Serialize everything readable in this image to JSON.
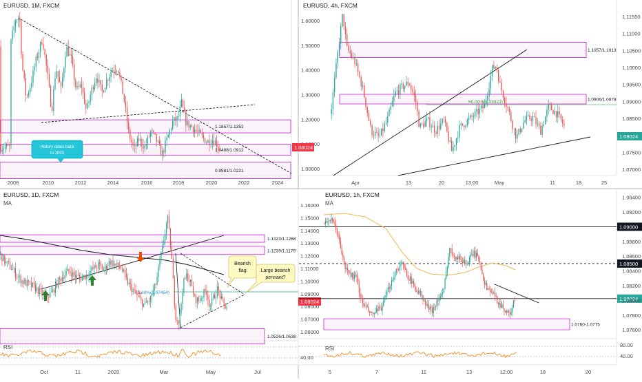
{
  "colors": {
    "up": "#26a69a",
    "down": "#ef5350",
    "zone": "#c71ed3",
    "ma": "#f7b54c",
    "rsi": "#f57c00",
    "price_tag": "#f23645",
    "fib": "#089981",
    "divider": "#d1d4dc"
  },
  "chart_data": [
    {
      "id": "monthly",
      "type": "candlestick",
      "title": "EURUSD, 1M, FXCM",
      "last_price": "1.08024",
      "x_ticks": [
        "2008",
        "2010",
        "2012",
        "2014",
        "2016",
        "2018",
        "2020",
        "2022",
        "2024"
      ],
      "y_ticks": [
        "1.60000",
        "1.50000",
        "1.40000",
        "1.30000",
        "1.20000",
        "1.10000",
        "1.00000"
      ],
      "ylim": [
        0.97,
        1.65
      ],
      "zones": [
        {
          "label": "1.1857/1.1352",
          "low": 1.1352,
          "high": 1.1857
        },
        {
          "label": "1.0488/1.0912",
          "low": 1.0488,
          "high": 1.0912
        },
        {
          "label": "0.9581/1.0221",
          "low": 0.9581,
          "high": 1.0221
        }
      ],
      "callout": {
        "text": [
          "History dates back",
          "to 2003"
        ]
      },
      "series": [
        {
          "name": "",
          "points": [
            [
              2008.0,
              1.47
            ],
            [
              2008.3,
              1.57
            ],
            [
              2008.55,
              1.59
            ],
            [
              2008.7,
              1.4
            ],
            [
              2008.95,
              1.27
            ],
            [
              2009.2,
              1.32
            ],
            [
              2009.5,
              1.41
            ],
            [
              2009.9,
              1.5
            ],
            [
              2010.2,
              1.36
            ],
            [
              2010.45,
              1.22
            ],
            [
              2010.7,
              1.39
            ],
            [
              2011.0,
              1.3
            ],
            [
              2011.3,
              1.47
            ],
            [
              2011.6,
              1.42
            ],
            [
              2011.9,
              1.3
            ],
            [
              2012.2,
              1.32
            ],
            [
              2012.5,
              1.22
            ],
            [
              2012.8,
              1.3
            ],
            [
              2013.1,
              1.36
            ],
            [
              2013.4,
              1.29
            ],
            [
              2013.7,
              1.34
            ],
            [
              2014.0,
              1.38
            ],
            [
              2014.35,
              1.39
            ],
            [
              2014.7,
              1.27
            ],
            [
              2015.0,
              1.13
            ],
            [
              2015.3,
              1.07
            ],
            [
              2015.6,
              1.11
            ],
            [
              2015.95,
              1.08
            ],
            [
              2016.3,
              1.14
            ],
            [
              2016.6,
              1.11
            ],
            [
              2016.95,
              1.05
            ],
            [
              2017.3,
              1.12
            ],
            [
              2017.6,
              1.18
            ],
            [
              2017.9,
              1.19
            ],
            [
              2018.1,
              1.25
            ],
            [
              2018.4,
              1.17
            ],
            [
              2018.7,
              1.16
            ],
            [
              2019.0,
              1.14
            ],
            [
              2019.3,
              1.12
            ],
            [
              2019.6,
              1.1
            ],
            [
              2019.9,
              1.11
            ],
            [
              2020.1,
              1.1
            ],
            [
              2020.3,
              1.08
            ]
          ]
        }
      ]
    },
    {
      "id": "h4",
      "type": "candlestick",
      "title": "EURUSD, 4h, FXCM",
      "last_price": "1.08024",
      "x_ticks": [
        "Apr",
        "13",
        "20",
        "13:00",
        "May",
        "11",
        "18",
        "25"
      ],
      "y_ticks": [
        "1.11500",
        "1.11000",
        "1.10500",
        "1.10000",
        "1.09500",
        "1.09000",
        "1.08500",
        "1.08000",
        "1.07500",
        "1.07000"
      ],
      "ylim": [
        1.067,
        1.118
      ],
      "zones": [
        {
          "label": "1.1057/1.1013",
          "low": 1.1013,
          "high": 1.1057
        },
        {
          "label": "1.0906/1.0878",
          "low": 1.0878,
          "high": 1.0906
        }
      ],
      "fib": {
        "label": "50.00%(1.08923)",
        "level": 1.08923
      },
      "series": [
        {
          "name": "",
          "points": [
            [
              0.0,
              1.085
            ],
            [
              1.0,
              1.105
            ],
            [
              1.5,
              1.114
            ],
            [
              2.0,
              1.104
            ],
            [
              3.0,
              1.1
            ],
            [
              4.0,
              1.092
            ],
            [
              5.0,
              1.08
            ],
            [
              6.0,
              1.078
            ],
            [
              7.0,
              1.083
            ],
            [
              8.0,
              1.091
            ],
            [
              9.0,
              1.093
            ],
            [
              9.7,
              1.094
            ],
            [
              10.5,
              1.089
            ],
            [
              11.0,
              1.081
            ],
            [
              12.0,
              1.083
            ],
            [
              13.0,
              1.08
            ],
            [
              14.0,
              1.083
            ],
            [
              15.0,
              1.074
            ],
            [
              16.0,
              1.081
            ],
            [
              17.0,
              1.083
            ],
            [
              18.0,
              1.085
            ],
            [
              19.0,
              1.087
            ],
            [
              19.5,
              1.092
            ],
            [
              20.0,
              1.098
            ],
            [
              20.5,
              1.099
            ],
            [
              21.0,
              1.093
            ],
            [
              22.0,
              1.086
            ],
            [
              23.0,
              1.078
            ],
            [
              24.0,
              1.083
            ],
            [
              25.0,
              1.084
            ],
            [
              26.0,
              1.08
            ],
            [
              27.0,
              1.087
            ],
            [
              28.0,
              1.085
            ],
            [
              29.0,
              1.081
            ]
          ]
        }
      ]
    },
    {
      "id": "daily",
      "type": "candlestick",
      "title": "EURUSD, 1D, FXCM",
      "indicator_label": "MA",
      "rsi_label": "RSI",
      "last_price": "1.08024",
      "x_ticks": [
        "Oct",
        "11",
        "2020",
        "Mar",
        "May",
        "Jul"
      ],
      "y_ticks": [
        "1.16000",
        "1.15000",
        "1.14000",
        "1.13000",
        "1.12000",
        "1.11000",
        "1.10000",
        "1.09000",
        "1.08000",
        "1.07000",
        "1.06000"
      ],
      "rsi_ticks": [
        "40.00"
      ],
      "ylim": [
        1.055,
        1.165
      ],
      "zones": [
        {
          "label": "1.1323/1.1268",
          "low": 1.1268,
          "high": 1.1323
        },
        {
          "label": "1.1239/1.1179",
          "low": 1.1179,
          "high": 1.1239
        },
        {
          "label": "1.0526/1.0638",
          "low": 1.0526,
          "high": 1.0638
        }
      ],
      "fib": {
        "label": "78.60%(1.07454)",
        "level": 1.07454
      },
      "callouts": [
        {
          "text": [
            "Bearish",
            "flag"
          ]
        },
        {
          "text": [
            "Large bearish",
            "pennant?"
          ]
        }
      ],
      "series": [
        {
          "name": "",
          "points": [
            [
              0,
              1.118
            ],
            [
              3,
              1.112
            ],
            [
              6,
              1.108
            ],
            [
              9,
              1.102
            ],
            [
              12,
              1.098
            ],
            [
              15,
              1.096
            ],
            [
              18,
              1.094
            ],
            [
              21,
              1.09
            ],
            [
              24,
              1.087
            ],
            [
              27,
              1.09
            ],
            [
              30,
              1.098
            ],
            [
              33,
              1.103
            ],
            [
              36,
              1.106
            ],
            [
              39,
              1.102
            ],
            [
              42,
              1.101
            ],
            [
              45,
              1.103
            ],
            [
              48,
              1.107
            ],
            [
              51,
              1.11
            ],
            [
              54,
              1.107
            ],
            [
              57,
              1.113
            ],
            [
              60,
              1.11
            ],
            [
              63,
              1.108
            ],
            [
              66,
              1.098
            ],
            [
              69,
              1.092
            ],
            [
              72,
              1.086
            ],
            [
              75,
              1.081
            ],
            [
              78,
              1.085
            ],
            [
              81,
              1.097
            ],
            [
              84,
              1.12
            ],
            [
              87,
              1.145
            ],
            [
              89,
              1.118
            ],
            [
              91,
              1.074
            ],
            [
              93,
              1.068
            ],
            [
              95,
              1.096
            ],
            [
              97,
              1.103
            ],
            [
              99,
              1.097
            ],
            [
              101,
              1.086
            ],
            [
              103,
              1.084
            ],
            [
              105,
              1.088
            ],
            [
              107,
              1.092
            ],
            [
              109,
              1.08
            ],
            [
              111,
              1.087
            ],
            [
              113,
              1.093
            ],
            [
              115,
              1.084
            ],
            [
              117,
              1.08
            ]
          ]
        }
      ]
    },
    {
      "id": "h1",
      "type": "candlestick",
      "title": "EURUSD, 1h, FXCM",
      "indicator_label": "MA",
      "rsi_label": "RSI",
      "last_price": "1.08024",
      "x_ticks": [
        "5",
        "7",
        "11",
        "13",
        "12:00",
        "18",
        "20"
      ],
      "y_ticks": [
        "1.09400",
        "1.09200",
        "1.09000",
        "1.08800",
        "1.08600",
        "1.08500",
        "1.08400",
        "1.08200",
        "1.08000",
        "1.07800",
        "1.07600"
      ],
      "rsi_ticks": [
        "80.00",
        "40.00"
      ],
      "ylim": [
        1.0748,
        1.095
      ],
      "levels": [
        {
          "label": "1.09000",
          "value": 1.09,
          "style": "solid"
        },
        {
          "label": "1.08500",
          "value": 1.085,
          "style": "dashed"
        },
        {
          "label": "1.08024",
          "value": 1.08024,
          "style": "solid"
        }
      ],
      "zones": [
        {
          "label": "1.0760-1.0775",
          "low": 1.076,
          "high": 1.0775
        }
      ],
      "series": [
        {
          "name": "",
          "points": [
            [
              0,
              1.0905
            ],
            [
              4,
              1.091
            ],
            [
              8,
              1.09
            ],
            [
              11,
              1.0875
            ],
            [
              14,
              1.0845
            ],
            [
              18,
              1.0835
            ],
            [
              22,
              1.083
            ],
            [
              25,
              1.08
            ],
            [
              28,
              1.079
            ],
            [
              32,
              1.078
            ],
            [
              36,
              1.0785
            ],
            [
              40,
              1.0795
            ],
            [
              44,
              1.082
            ],
            [
              48,
              1.084
            ],
            [
              52,
              1.085
            ],
            [
              56,
              1.0835
            ],
            [
              60,
              1.082
            ],
            [
              64,
              1.081
            ],
            [
              68,
              1.0795
            ],
            [
              72,
              1.0785
            ],
            [
              76,
              1.08
            ],
            [
              80,
              1.081
            ],
            [
              84,
              1.087
            ],
            [
              88,
              1.086
            ],
            [
              92,
              1.0855
            ],
            [
              96,
              1.085
            ],
            [
              100,
              1.0865
            ],
            [
              104,
              1.0855
            ],
            [
              108,
              1.082
            ],
            [
              112,
              1.0812
            ],
            [
              116,
              1.08
            ],
            [
              120,
              1.079
            ],
            [
              124,
              1.078
            ],
            [
              128,
              1.0802
            ]
          ]
        }
      ]
    }
  ]
}
